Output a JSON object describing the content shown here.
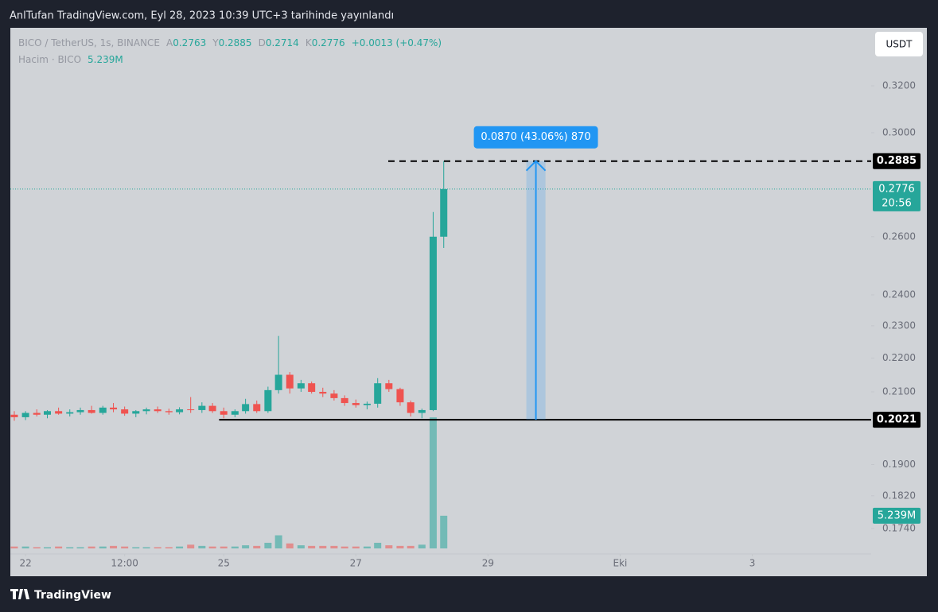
{
  "header": {
    "text": "AnlTufan TradingView.com, Eyl 28, 2023 10:39 UTC+3 tarihinde yayınlandı"
  },
  "footer": {
    "brand": "TradingView"
  },
  "chart_data": {
    "type": "candlestick",
    "symbol": "BICO / TetherUS, 1s, BINANCE",
    "ohlc_labels": [
      "A",
      "Y",
      "D",
      "K"
    ],
    "ohlc_values": [
      0.2763,
      0.2885,
      0.2714,
      0.2776
    ],
    "change": "+0.0013 (+0.47%)",
    "volume_title": "Hacim · BICO",
    "volume_value": "5.239M",
    "currency": "USDT",
    "x": [
      -0.17,
      0,
      0.17,
      0.33,
      0.5,
      0.67,
      0.83,
      1,
      1.17,
      1.33,
      1.5,
      1.67,
      1.83,
      2,
      2.17,
      2.33,
      2.5,
      2.67,
      2.83,
      3,
      3.17,
      3.33,
      3.5,
      3.67,
      3.83,
      4,
      4.17,
      4.33,
      4.5,
      4.67,
      4.83,
      5,
      5.17,
      5.33,
      5.5,
      5.67,
      5.83,
      6,
      6.17,
      6.33
    ],
    "open": [
      0.2035,
      0.2028,
      0.204,
      0.2035,
      0.2045,
      0.2038,
      0.2042,
      0.2048,
      0.204,
      0.2055,
      0.205,
      0.2038,
      0.2045,
      0.205,
      0.2045,
      0.2042,
      0.205,
      0.2048,
      0.206,
      0.2045,
      0.2035,
      0.2045,
      0.2065,
      0.2045,
      0.2105,
      0.215,
      0.211,
      0.2125,
      0.21,
      0.2095,
      0.2082,
      0.2068,
      0.2062,
      0.2066,
      0.2125,
      0.2108,
      0.207,
      0.204,
      0.2048,
      0.26
    ],
    "high": [
      0.2045,
      0.2045,
      0.205,
      0.2048,
      0.2055,
      0.205,
      0.2055,
      0.206,
      0.206,
      0.2068,
      0.2058,
      0.2048,
      0.2055,
      0.2058,
      0.2052,
      0.2056,
      0.2085,
      0.207,
      0.2068,
      0.2055,
      0.205,
      0.208,
      0.2075,
      0.2115,
      0.2268,
      0.2158,
      0.2135,
      0.213,
      0.2112,
      0.2105,
      0.209,
      0.2078,
      0.2072,
      0.214,
      0.2135,
      0.2112,
      0.2075,
      0.2052,
      0.269,
      0.2885
    ],
    "low": [
      0.2018,
      0.202,
      0.203,
      0.2025,
      0.2035,
      0.203,
      0.2035,
      0.2038,
      0.2035,
      0.2042,
      0.2032,
      0.2028,
      0.2036,
      0.204,
      0.2035,
      0.2036,
      0.204,
      0.204,
      0.204,
      0.2025,
      0.2028,
      0.2038,
      0.204,
      0.204,
      0.2095,
      0.2095,
      0.21,
      0.2095,
      0.2085,
      0.2075,
      0.206,
      0.2055,
      0.205,
      0.2055,
      0.21,
      0.206,
      0.203,
      0.2025,
      0.2045,
      0.256
    ],
    "close": [
      0.2028,
      0.204,
      0.2035,
      0.2045,
      0.2038,
      0.2042,
      0.2048,
      0.204,
      0.2055,
      0.205,
      0.2038,
      0.2045,
      0.205,
      0.2045,
      0.2042,
      0.205,
      0.2048,
      0.206,
      0.2045,
      0.2035,
      0.2045,
      0.2065,
      0.2045,
      0.2105,
      0.215,
      0.211,
      0.2125,
      0.21,
      0.2095,
      0.2082,
      0.2068,
      0.2062,
      0.2066,
      0.2125,
      0.2108,
      0.207,
      0.204,
      0.2048,
      0.26,
      0.2776
    ],
    "volume": [
      300000,
      300000,
      200000,
      200000,
      300000,
      200000,
      200000,
      300000,
      300000,
      400000,
      300000,
      200000,
      200000,
      200000,
      200000,
      300000,
      600000,
      400000,
      300000,
      300000,
      300000,
      500000,
      400000,
      900000,
      2100000,
      800000,
      500000,
      400000,
      400000,
      400000,
      300000,
      300000,
      300000,
      900000,
      500000,
      400000,
      400000,
      600000,
      21000000,
      5239000
    ],
    "up_color": "#26a69a",
    "down_color": "#ef5350",
    "log_scale": true,
    "ylim": [
      0.168,
      0.3466
    ],
    "yticks": [
      {
        "value": 0.174,
        "label": "0.1740"
      },
      {
        "value": 0.182,
        "label": "0.1820"
      },
      {
        "value": 0.19,
        "label": "0.1900"
      },
      {
        "value": 0.21,
        "label": "0.2100"
      },
      {
        "value": 0.22,
        "label": "0.2200"
      },
      {
        "value": 0.23,
        "label": "0.2300"
      },
      {
        "value": 0.24,
        "label": "0.2400"
      },
      {
        "value": 0.26,
        "label": "0.2600"
      },
      {
        "value": 0.3,
        "label": "0.3000"
      },
      {
        "value": 0.32,
        "label": "0.3200"
      }
    ],
    "xlim": [
      -0.23,
      12.8
    ],
    "xticks": [
      {
        "value": 0,
        "label": "22"
      },
      {
        "value": 1.5,
        "label": "12:00"
      },
      {
        "value": 3,
        "label": "25"
      },
      {
        "value": 5,
        "label": "27"
      },
      {
        "value": 7,
        "label": "29"
      },
      {
        "value": 9,
        "label": "Eki"
      },
      {
        "value": 11,
        "label": "3"
      }
    ],
    "volume_lim": [
      0,
      27000000
    ],
    "price_lines": [
      {
        "value": 0.2885,
        "x_start": 5.49,
        "style": "dashed"
      },
      {
        "value": 0.2021,
        "x_start": 2.93,
        "style": "solid"
      }
    ],
    "last_price": {
      "value": 0.2776,
      "countdown": "20:56"
    },
    "measure": {
      "label": "0.0870 (43.06%) 870",
      "x_range": [
        7.58,
        7.87
      ],
      "color": "#2196f3"
    }
  }
}
